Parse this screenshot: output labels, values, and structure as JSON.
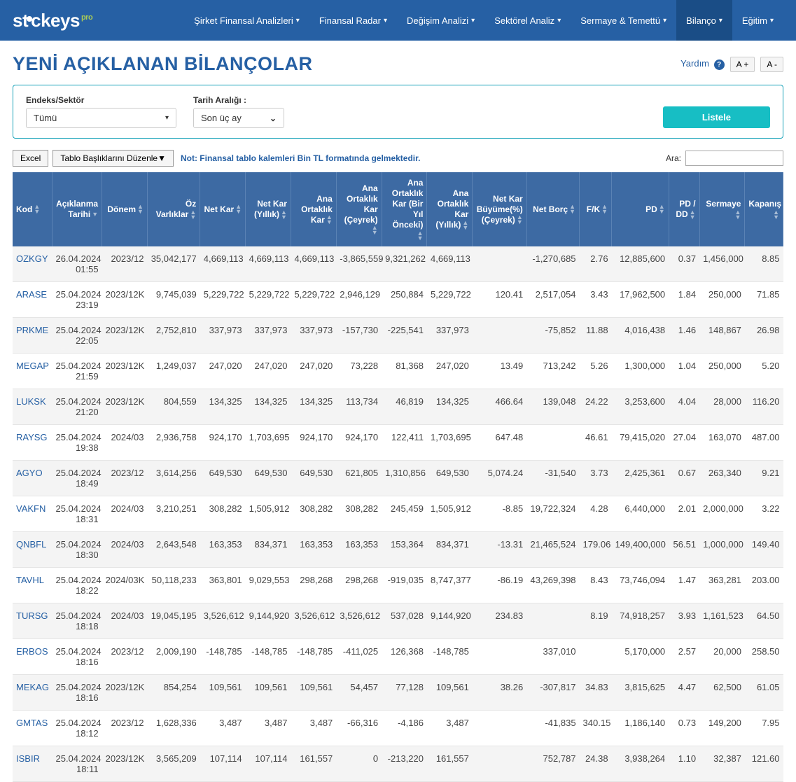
{
  "logo_sup": "pro",
  "nav": [
    {
      "label": "Şirket Finansal Analizleri",
      "active": false
    },
    {
      "label": "Finansal Radar",
      "active": false
    },
    {
      "label": "Değişim Analizi",
      "active": false
    },
    {
      "label": "Sektörel Analiz",
      "active": false
    },
    {
      "label": "Sermaye & Temettü",
      "active": false
    },
    {
      "label": "Bilanço",
      "active": true
    },
    {
      "label": "Eğitim",
      "active": false
    }
  ],
  "page_title": "YENİ AÇIKLANAN BİLANÇOLAR",
  "help_text": "Yardım",
  "font_plus": "A +",
  "font_minus": "A -",
  "filter": {
    "sector_label": "Endeks/Sektör",
    "sector_value": "Tümü",
    "date_label": "Tarih Aralığı :",
    "date_value": "Son üç ay",
    "listele": "Listele"
  },
  "toolbar": {
    "excel": "Excel",
    "headers": "Tablo Başlıklarını Düzenle▼",
    "note": "Not: Finansal tablo kalemleri Bin TL formatında gelmektedir.",
    "search_label": "Ara:"
  },
  "columns": [
    "Kod",
    "Açıklanma Tarihi",
    "Dönem",
    "Öz Varlıklar",
    "Net Kar",
    "Net Kar (Yıllık)",
    "Ana Ortaklık Kar",
    "Ana Ortaklık Kar (Çeyrek)",
    "Ana Ortaklık Kar (Bir Yıl Önceki)",
    "Ana Ortaklık Kar (Yıllık)",
    "Net Kar Büyüme(%) (Çeyrek)",
    "Net Borç",
    "F/K",
    "PD",
    "PD / DD",
    "Sermaye",
    "Kapanış"
  ],
  "rows": [
    {
      "kod": "OZKGY",
      "tarih": "26.04.2024 01:55",
      "donem": "2023/12",
      "ozv": "35,042,177",
      "netkar": "4,669,113",
      "netkary": "4,669,113",
      "aout": "4,669,113",
      "aoutc": "-3,865,559",
      "aoutb": "9,321,262",
      "aouty": "4,669,113",
      "nkb": "",
      "netborc": "-1,270,685",
      "fk": "2.76",
      "pd": "12,885,600",
      "pddd": "0.37",
      "serm": "1,456,000",
      "kap": "8.85"
    },
    {
      "kod": "ARASE",
      "tarih": "25.04.2024 23:19",
      "donem": "2023/12K",
      "ozv": "9,745,039",
      "netkar": "5,229,722",
      "netkary": "5,229,722",
      "aout": "5,229,722",
      "aoutc": "2,946,129",
      "aoutb": "250,884",
      "aouty": "5,229,722",
      "nkb": "120.41",
      "netborc": "2,517,054",
      "fk": "3.43",
      "pd": "17,962,500",
      "pddd": "1.84",
      "serm": "250,000",
      "kap": "71.85"
    },
    {
      "kod": "PRKME",
      "tarih": "25.04.2024 22:05",
      "donem": "2023/12K",
      "ozv": "2,752,810",
      "netkar": "337,973",
      "netkary": "337,973",
      "aout": "337,973",
      "aoutc": "-157,730",
      "aoutb": "-225,541",
      "aouty": "337,973",
      "nkb": "",
      "netborc": "-75,852",
      "fk": "11.88",
      "pd": "4,016,438",
      "pddd": "1.46",
      "serm": "148,867",
      "kap": "26.98"
    },
    {
      "kod": "MEGAP",
      "tarih": "25.04.2024 21:59",
      "donem": "2023/12K",
      "ozv": "1,249,037",
      "netkar": "247,020",
      "netkary": "247,020",
      "aout": "247,020",
      "aoutc": "73,228",
      "aoutb": "81,368",
      "aouty": "247,020",
      "nkb": "13.49",
      "netborc": "713,242",
      "fk": "5.26",
      "pd": "1,300,000",
      "pddd": "1.04",
      "serm": "250,000",
      "kap": "5.20"
    },
    {
      "kod": "LUKSK",
      "tarih": "25.04.2024 21:20",
      "donem": "2023/12K",
      "ozv": "804,559",
      "netkar": "134,325",
      "netkary": "134,325",
      "aout": "134,325",
      "aoutc": "113,734",
      "aoutb": "46,819",
      "aouty": "134,325",
      "nkb": "466.64",
      "netborc": "139,048",
      "fk": "24.22",
      "pd": "3,253,600",
      "pddd": "4.04",
      "serm": "28,000",
      "kap": "116.20"
    },
    {
      "kod": "RAYSG",
      "tarih": "25.04.2024 19:38",
      "donem": "2024/03",
      "ozv": "2,936,758",
      "netkar": "924,170",
      "netkary": "1,703,695",
      "aout": "924,170",
      "aoutc": "924,170",
      "aoutb": "122,411",
      "aouty": "1,703,695",
      "nkb": "647.48",
      "netborc": "",
      "fk": "46.61",
      "pd": "79,415,020",
      "pddd": "27.04",
      "serm": "163,070",
      "kap": "487.00"
    },
    {
      "kod": "AGYO",
      "tarih": "25.04.2024 18:49",
      "donem": "2023/12",
      "ozv": "3,614,256",
      "netkar": "649,530",
      "netkary": "649,530",
      "aout": "649,530",
      "aoutc": "621,805",
      "aoutb": "1,310,856",
      "aouty": "649,530",
      "nkb": "5,074.24",
      "netborc": "-31,540",
      "fk": "3.73",
      "pd": "2,425,361",
      "pddd": "0.67",
      "serm": "263,340",
      "kap": "9.21"
    },
    {
      "kod": "VAKFN",
      "tarih": "25.04.2024 18:31",
      "donem": "2024/03",
      "ozv": "3,210,251",
      "netkar": "308,282",
      "netkary": "1,505,912",
      "aout": "308,282",
      "aoutc": "308,282",
      "aoutb": "245,459",
      "aouty": "1,505,912",
      "nkb": "-8.85",
      "netborc": "19,722,324",
      "fk": "4.28",
      "pd": "6,440,000",
      "pddd": "2.01",
      "serm": "2,000,000",
      "kap": "3.22"
    },
    {
      "kod": "QNBFL",
      "tarih": "25.04.2024 18:30",
      "donem": "2024/03",
      "ozv": "2,643,548",
      "netkar": "163,353",
      "netkary": "834,371",
      "aout": "163,353",
      "aoutc": "163,353",
      "aoutb": "153,364",
      "aouty": "834,371",
      "nkb": "-13.31",
      "netborc": "21,465,524",
      "fk": "179.06",
      "pd": "149,400,000",
      "pddd": "56.51",
      "serm": "1,000,000",
      "kap": "149.40"
    },
    {
      "kod": "TAVHL",
      "tarih": "25.04.2024 18:22",
      "donem": "2024/03K",
      "ozv": "50,118,233",
      "netkar": "363,801",
      "netkary": "9,029,553",
      "aout": "298,268",
      "aoutc": "298,268",
      "aoutb": "-919,035",
      "aouty": "8,747,377",
      "nkb": "-86.19",
      "netborc": "43,269,398",
      "fk": "8.43",
      "pd": "73,746,094",
      "pddd": "1.47",
      "serm": "363,281",
      "kap": "203.00"
    },
    {
      "kod": "TURSG",
      "tarih": "25.04.2024 18:18",
      "donem": "2024/03",
      "ozv": "19,045,195",
      "netkar": "3,526,612",
      "netkary": "9,144,920",
      "aout": "3,526,612",
      "aoutc": "3,526,612",
      "aoutb": "537,028",
      "aouty": "9,144,920",
      "nkb": "234.83",
      "netborc": "",
      "fk": "8.19",
      "pd": "74,918,257",
      "pddd": "3.93",
      "serm": "1,161,523",
      "kap": "64.50"
    },
    {
      "kod": "ERBOS",
      "tarih": "25.04.2024 18:16",
      "donem": "2023/12",
      "ozv": "2,009,190",
      "netkar": "-148,785",
      "netkary": "-148,785",
      "aout": "-148,785",
      "aoutc": "-411,025",
      "aoutb": "126,368",
      "aouty": "-148,785",
      "nkb": "",
      "netborc": "337,010",
      "fk": "",
      "pd": "5,170,000",
      "pddd": "2.57",
      "serm": "20,000",
      "kap": "258.50"
    },
    {
      "kod": "MEKAG",
      "tarih": "25.04.2024 18:16",
      "donem": "2023/12K",
      "ozv": "854,254",
      "netkar": "109,561",
      "netkary": "109,561",
      "aout": "109,561",
      "aoutc": "54,457",
      "aoutb": "77,128",
      "aouty": "109,561",
      "nkb": "38.26",
      "netborc": "-307,817",
      "fk": "34.83",
      "pd": "3,815,625",
      "pddd": "4.47",
      "serm": "62,500",
      "kap": "61.05"
    },
    {
      "kod": "GMTAS",
      "tarih": "25.04.2024 18:12",
      "donem": "2023/12",
      "ozv": "1,628,336",
      "netkar": "3,487",
      "netkary": "3,487",
      "aout": "3,487",
      "aoutc": "-66,316",
      "aoutb": "-4,186",
      "aouty": "3,487",
      "nkb": "",
      "netborc": "-41,835",
      "fk": "340.15",
      "pd": "1,186,140",
      "pddd": "0.73",
      "serm": "149,200",
      "kap": "7.95"
    },
    {
      "kod": "ISBIR",
      "tarih": "25.04.2024 18:11",
      "donem": "2023/12K",
      "ozv": "3,565,209",
      "netkar": "107,114",
      "netkary": "107,114",
      "aout": "161,557",
      "aoutc": "0",
      "aoutb": "-213,220",
      "aouty": "161,557",
      "nkb": "",
      "netborc": "752,787",
      "fk": "24.38",
      "pd": "3,938,264",
      "pddd": "1.10",
      "serm": "32,387",
      "kap": "121.60"
    }
  ]
}
